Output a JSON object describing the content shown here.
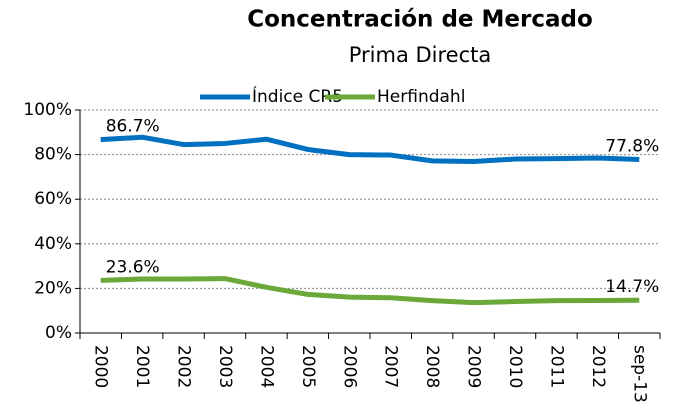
{
  "chart_data": {
    "type": "line",
    "title": "Concentración de Mercado",
    "subtitle": "Prima Directa",
    "categories": [
      "2000",
      "2001",
      "2002",
      "2003",
      "2004",
      "2005",
      "2006",
      "2007",
      "2008",
      "2009",
      "2010",
      "2011",
      "2012",
      "sep-13"
    ],
    "series": [
      {
        "name": "Índice CR5",
        "color": "#0070c0",
        "values": [
          86.7,
          87.8,
          84.5,
          85.0,
          86.9,
          82.3,
          80.0,
          79.8,
          77.2,
          76.9,
          78.0,
          78.2,
          78.5,
          77.8
        ],
        "value_labels": [
          "86.7%",
          null,
          null,
          null,
          null,
          null,
          null,
          null,
          null,
          null,
          null,
          null,
          null,
          "77.8%"
        ]
      },
      {
        "name": "Herfindahl",
        "color": "#6aa83a",
        "values": [
          23.6,
          24.2,
          24.2,
          24.4,
          20.5,
          17.3,
          16.1,
          15.8,
          14.5,
          13.6,
          14.1,
          14.5,
          14.6,
          14.7
        ],
        "value_labels": [
          "23.6%",
          null,
          null,
          null,
          null,
          null,
          null,
          null,
          null,
          null,
          null,
          null,
          null,
          "14.7%"
        ]
      }
    ],
    "ylim": [
      0,
      100
    ],
    "yticks": [
      {
        "value": 0,
        "label": "0%"
      },
      {
        "value": 20,
        "label": "20%"
      },
      {
        "value": 40,
        "label": "40%"
      },
      {
        "value": 60,
        "label": "60%"
      },
      {
        "value": 80,
        "label": "80%"
      },
      {
        "value": 100,
        "label": "100%"
      }
    ],
    "grid": true,
    "legend": "top"
  }
}
